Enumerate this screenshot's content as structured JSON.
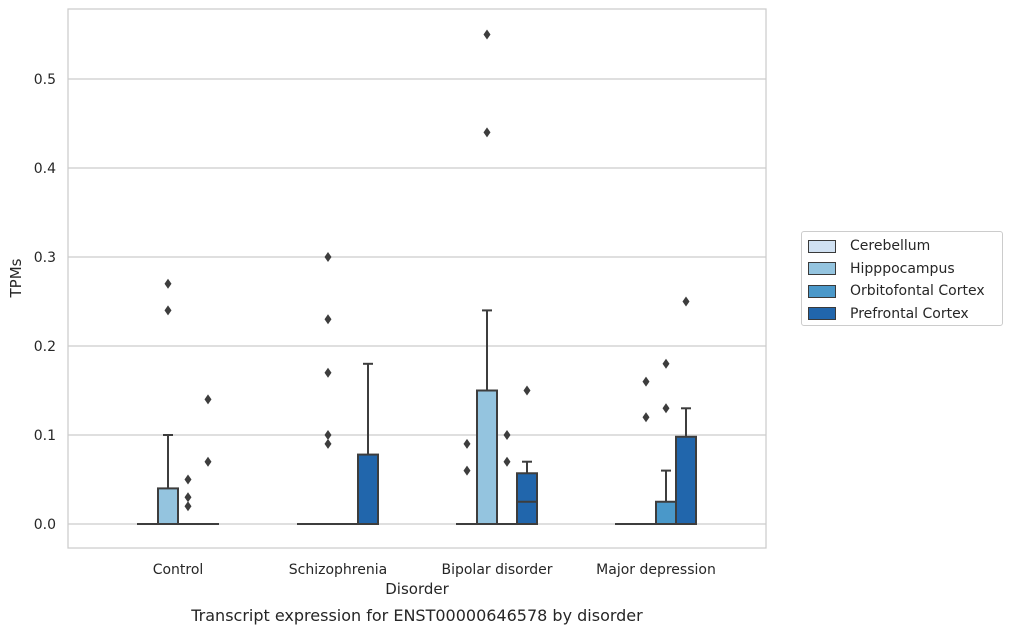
{
  "chart_data": {
    "type": "box",
    "title": "",
    "caption": "Transcript expression for ENST00000646578 by disorder",
    "xlabel": "Disorder",
    "ylabel": "TPMs",
    "ylim": [
      -0.028,
      0.58
    ],
    "yticks": [
      0.0,
      0.1,
      0.2,
      0.3,
      0.4,
      0.5
    ],
    "ytick_labels": [
      "0.0",
      "0.1",
      "0.2",
      "0.3",
      "0.4",
      "0.5"
    ],
    "grid": "horizontal",
    "legend_position": "right",
    "categories": [
      "Control",
      "Schizophrenia",
      "Bipolar disorder",
      "Major depression"
    ],
    "series": [
      {
        "name": "Cerebellum",
        "color": "#d0e1f2",
        "boxes": [
          {
            "whislo": 0,
            "q1": 0,
            "med": 0,
            "q3": 0,
            "whishi": 0,
            "fliers": []
          },
          {
            "whislo": 0,
            "q1": 0,
            "med": 0,
            "q3": 0,
            "whishi": 0,
            "fliers": []
          },
          {
            "whislo": 0,
            "q1": 0,
            "med": 0,
            "q3": 0,
            "whishi": 0,
            "fliers": [
              0.06,
              0.09
            ]
          },
          {
            "whislo": 0,
            "q1": 0,
            "med": 0,
            "q3": 0,
            "whishi": 0,
            "fliers": []
          }
        ]
      },
      {
        "name": "Hipppocampus",
        "color": "#94c4df",
        "boxes": [
          {
            "whislo": 0,
            "q1": 0,
            "med": 0,
            "q3": 0.04,
            "whishi": 0.1,
            "fliers": [
              0.24,
              0.27
            ]
          },
          {
            "whislo": 0,
            "q1": 0,
            "med": 0,
            "q3": 0,
            "whishi": 0,
            "fliers": [
              0.09,
              0.1,
              0.17,
              0.23,
              0.3
            ]
          },
          {
            "whislo": 0,
            "q1": 0,
            "med": 0,
            "q3": 0.15,
            "whishi": 0.24,
            "fliers": [
              0.44,
              0.55
            ]
          },
          {
            "whislo": 0,
            "q1": 0,
            "med": 0,
            "q3": 0,
            "whishi": 0,
            "fliers": [
              0.12,
              0.16
            ]
          }
        ]
      },
      {
        "name": "Orbitofontal Cortex",
        "color": "#4a98c9",
        "boxes": [
          {
            "whislo": 0,
            "q1": 0,
            "med": 0,
            "q3": 0,
            "whishi": 0,
            "fliers": [
              0.02,
              0.03,
              0.05
            ]
          },
          {
            "whislo": 0,
            "q1": 0,
            "med": 0,
            "q3": 0,
            "whishi": 0,
            "fliers": []
          },
          {
            "whislo": 0,
            "q1": 0,
            "med": 0,
            "q3": 0,
            "whishi": 0,
            "fliers": [
              0.07,
              0.1
            ]
          },
          {
            "whislo": 0,
            "q1": 0,
            "med": 0,
            "q3": 0.025,
            "whishi": 0.06,
            "fliers": [
              0.13,
              0.18
            ]
          }
        ]
      },
      {
        "name": "Prefrontal Cortex",
        "color": "#2166ac",
        "boxes": [
          {
            "whislo": 0,
            "q1": 0,
            "med": 0,
            "q3": 0,
            "whishi": 0,
            "fliers": [
              0.07,
              0.14
            ]
          },
          {
            "whislo": 0,
            "q1": 0,
            "med": 0,
            "q3": 0.078,
            "whishi": 0.18,
            "fliers": []
          },
          {
            "whislo": 0,
            "q1": 0,
            "med": 0.025,
            "q3": 0.057,
            "whishi": 0.07,
            "fliers": [
              0.15
            ]
          },
          {
            "whislo": 0,
            "q1": 0,
            "med": 0,
            "q3": 0.098,
            "whishi": 0.13,
            "fliers": [
              0.25
            ]
          }
        ]
      }
    ]
  }
}
